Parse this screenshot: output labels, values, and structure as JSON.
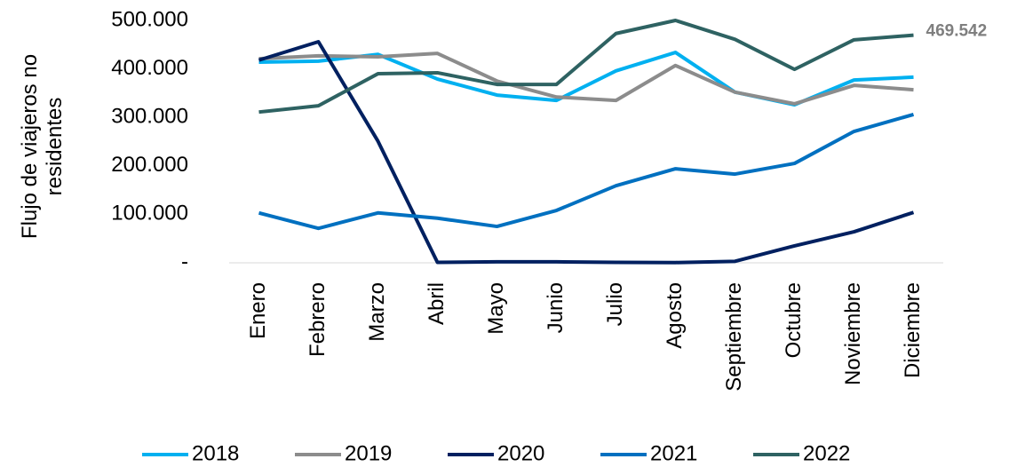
{
  "chart_data": {
    "type": "line",
    "y_label": "Flujo de viajeros no residentes",
    "categories": [
      "Enero",
      "Febrero",
      "Marzo",
      "Abril",
      "Mayo",
      "Junio",
      "Julio",
      "Agosto",
      "Septiembre",
      "Octubre",
      "Noviembre",
      "Diciembre"
    ],
    "series": [
      {
        "name": "2018",
        "color": "#00b0f0",
        "values": [
          414000,
          416000,
          430000,
          379000,
          346000,
          335000,
          396000,
          434000,
          352000,
          326000,
          377000,
          383000
        ]
      },
      {
        "name": "2019",
        "color": "#8c8c8c",
        "values": [
          421000,
          427000,
          425000,
          432000,
          375000,
          342000,
          335000,
          407000,
          352000,
          328000,
          366000,
          357000
        ]
      },
      {
        "name": "2020",
        "color": "#002060",
        "values": [
          418000,
          456000,
          251000,
          1000,
          2000,
          2000,
          1000,
          500,
          3000,
          35000,
          64000,
          104000
        ]
      },
      {
        "name": "2021",
        "color": "#0070c0",
        "values": [
          103000,
          71000,
          103000,
          92000,
          75000,
          108000,
          159000,
          194000,
          183000,
          205000,
          271000,
          306000
        ]
      },
      {
        "name": "2022",
        "color": "#2e6262",
        "values": [
          311000,
          324000,
          390000,
          392000,
          368000,
          368000,
          473000,
          500000,
          461000,
          399000,
          460000,
          469542
        ],
        "value_labels": [
          null,
          null,
          null,
          null,
          null,
          null,
          null,
          null,
          null,
          null,
          null,
          "469.542"
        ]
      }
    ],
    "ylim": [
      0,
      500000
    ],
    "yticks": [
      {
        "value": 0,
        "label": "-"
      },
      {
        "value": 100000,
        "label": "100.000"
      },
      {
        "value": 200000,
        "label": "200.000"
      },
      {
        "value": 300000,
        "label": "300.000"
      },
      {
        "value": 400000,
        "label": "400.000"
      },
      {
        "value": 500000,
        "label": "500.000"
      }
    ],
    "grid": false,
    "legend": "bottom"
  }
}
